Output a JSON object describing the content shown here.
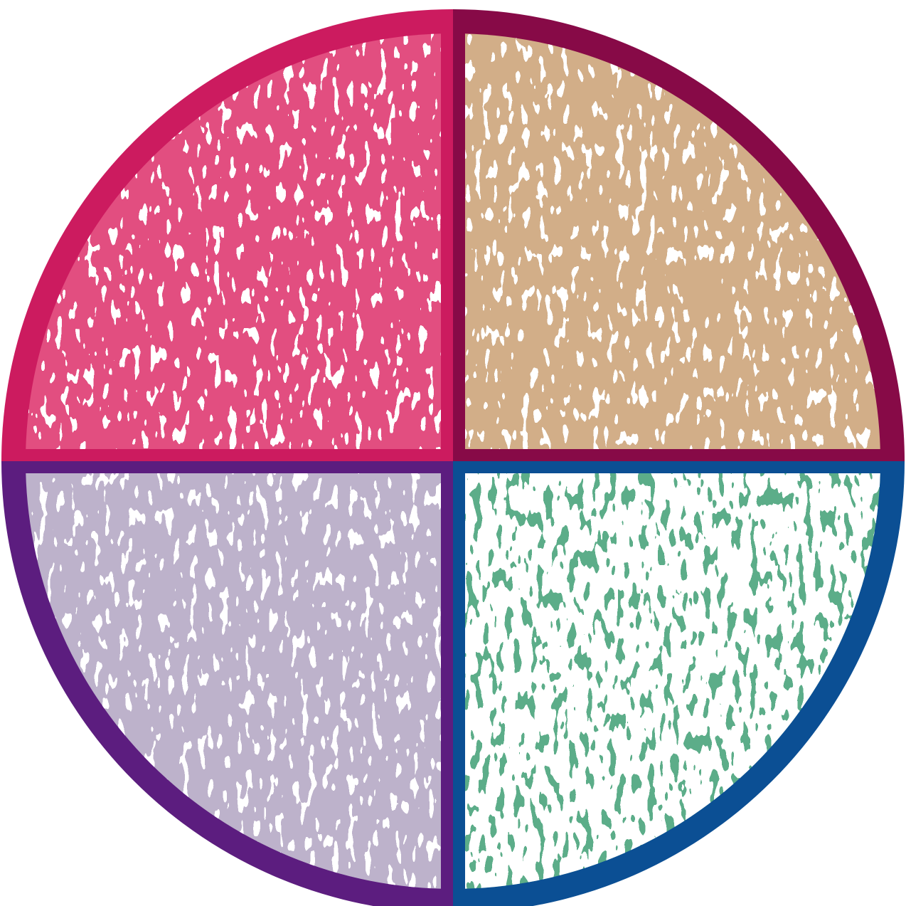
{
  "graphic": {
    "shape": "circle divided into four quadrants",
    "quadrants": [
      {
        "id": "top-left",
        "fill_color": "#E24E80",
        "border_color": "#CC1B5F",
        "texture": "speckled"
      },
      {
        "id": "top-right",
        "fill_color": "#D2AE88",
        "border_color": "#870A47",
        "texture": "speckled"
      },
      {
        "id": "bottom-left",
        "fill_color": "#BDB2CB",
        "border_color": "#5C1D7F",
        "texture": "speckled"
      },
      {
        "id": "bottom-right",
        "fill_color": "#5CAD89",
        "border_color": "#0B4F94",
        "texture": "speckled-light"
      }
    ],
    "background_color": "#FFFFFF"
  }
}
